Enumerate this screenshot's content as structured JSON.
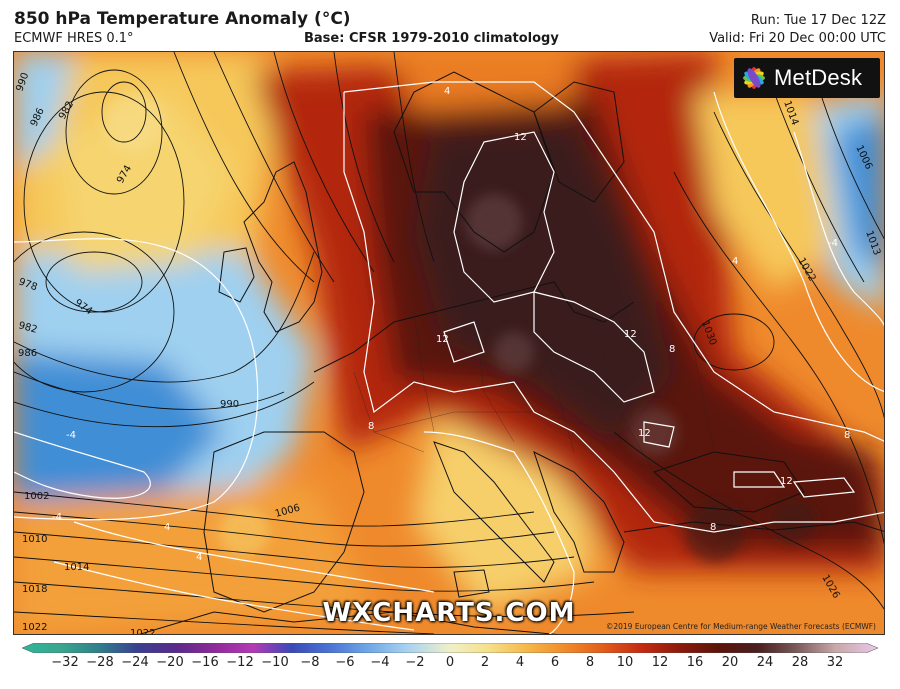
{
  "header": {
    "title": "850 hPa Temperature Anomaly (°C)",
    "model": "ECMWF HRES 0.1°",
    "base": "Base: CFSR 1979-2010 climatology",
    "run": "Run: Tue 17 Dec 12Z",
    "valid": "Valid: Fri 20 Dec 00:00 UTC"
  },
  "branding": {
    "logo_text": "MetDesk",
    "watermark": "WXCHARTS.COM",
    "copyright": "©2019 European Centre for Medium-range Weather Forecasts (ECMWF)"
  },
  "map": {
    "isobar_labels": [
      "990",
      "986",
      "982",
      "974",
      "978",
      "974",
      "982",
      "986",
      "990",
      "1002",
      "1006",
      "1010",
      "1014",
      "1018",
      "1022",
      "1022",
      "1030",
      "1026",
      "1022",
      "1014",
      "1006",
      "1013"
    ],
    "anomaly_labels": [
      "12",
      "12",
      "12",
      "12",
      "12",
      "8",
      "8",
      "8",
      "8",
      "4",
      "4",
      "4",
      "4",
      "-4",
      "-4",
      "-4"
    ],
    "colors": {
      "cold_extreme": "#3a7fd0",
      "cold": "#9fd0f0",
      "neutral_warm": "#f4d27a",
      "warm": "#f08a2a",
      "hot": "#c22a12",
      "very_hot": "#5a1408",
      "extreme": "#3a1a18"
    }
  },
  "colorbar": {
    "ticks": [
      "−32",
      "−28",
      "−24",
      "−20",
      "−16",
      "−12",
      "−10",
      "−8",
      "−6",
      "−4",
      "−2",
      "0",
      "2",
      "4",
      "6",
      "8",
      "10",
      "12",
      "16",
      "20",
      "24",
      "28",
      "32"
    ],
    "colors": [
      "#2fb59a",
      "#3aa68d",
      "#2f7f8c",
      "#3a3f8f",
      "#5a2a8a",
      "#8e2a9a",
      "#b43ab4",
      "#3a4ab8",
      "#4a74d4",
      "#6fa8e6",
      "#a8d2f2",
      "#f0f0c8",
      "#f6e08a",
      "#f5b84a",
      "#f08a2a",
      "#e25a1a",
      "#c22a12",
      "#8a1a0c",
      "#5a140a",
      "#4a2020",
      "#7a5a5a",
      "#c8a8a8",
      "#e8c8e8"
    ]
  }
}
